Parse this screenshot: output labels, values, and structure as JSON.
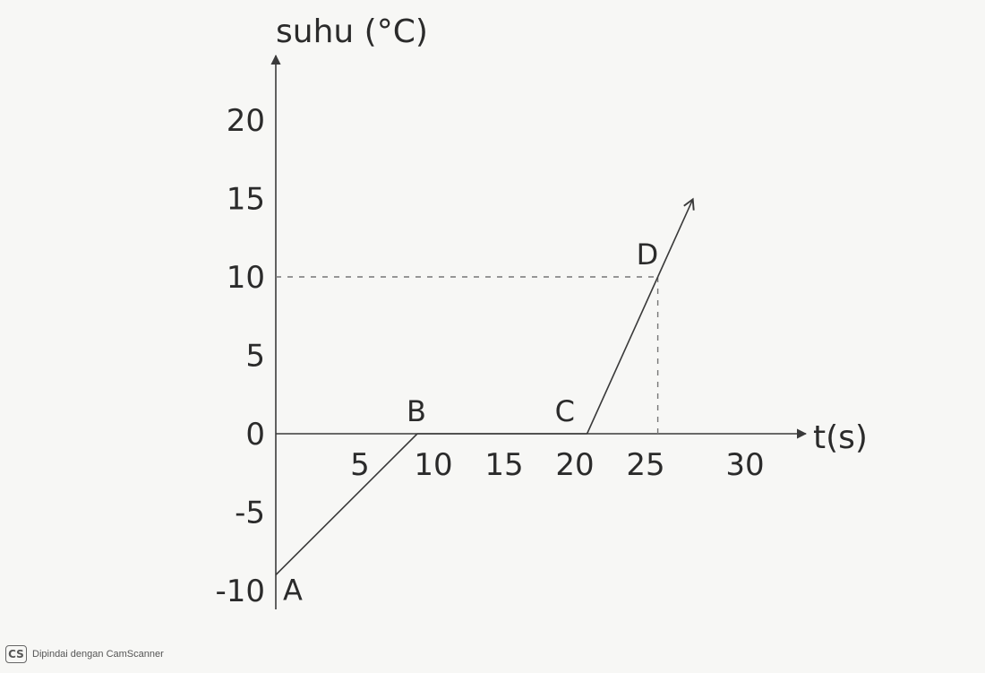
{
  "chart_data": {
    "type": "line",
    "xlabel": "t(s)",
    "ylabel": "suhu (°C)",
    "xlim": [
      0,
      33
    ],
    "ylim": [
      -12,
      25
    ],
    "x_ticks": [
      5,
      10,
      15,
      20,
      25,
      30
    ],
    "y_ticks": [
      20,
      15,
      10,
      5,
      0,
      -5,
      -10
    ],
    "series": [
      {
        "points": [
          {
            "label": "A",
            "x": 0,
            "y": -9
          },
          {
            "label": "B",
            "x": 10,
            "y": 0
          },
          {
            "label": "C",
            "x": 22,
            "y": 0
          },
          {
            "label": "D",
            "x": 27,
            "y": 10
          }
        ],
        "continues_with_arrow": true
      }
    ],
    "reference_lines": [
      {
        "from": [
          0,
          10
        ],
        "to": [
          27,
          10
        ],
        "style": "dashed"
      },
      {
        "from": [
          27,
          10
        ],
        "to": [
          27,
          0
        ],
        "style": "dashed"
      }
    ],
    "grid": false
  },
  "watermark": {
    "logo": "CS",
    "text": "Dipindai dengan CamScanner"
  }
}
